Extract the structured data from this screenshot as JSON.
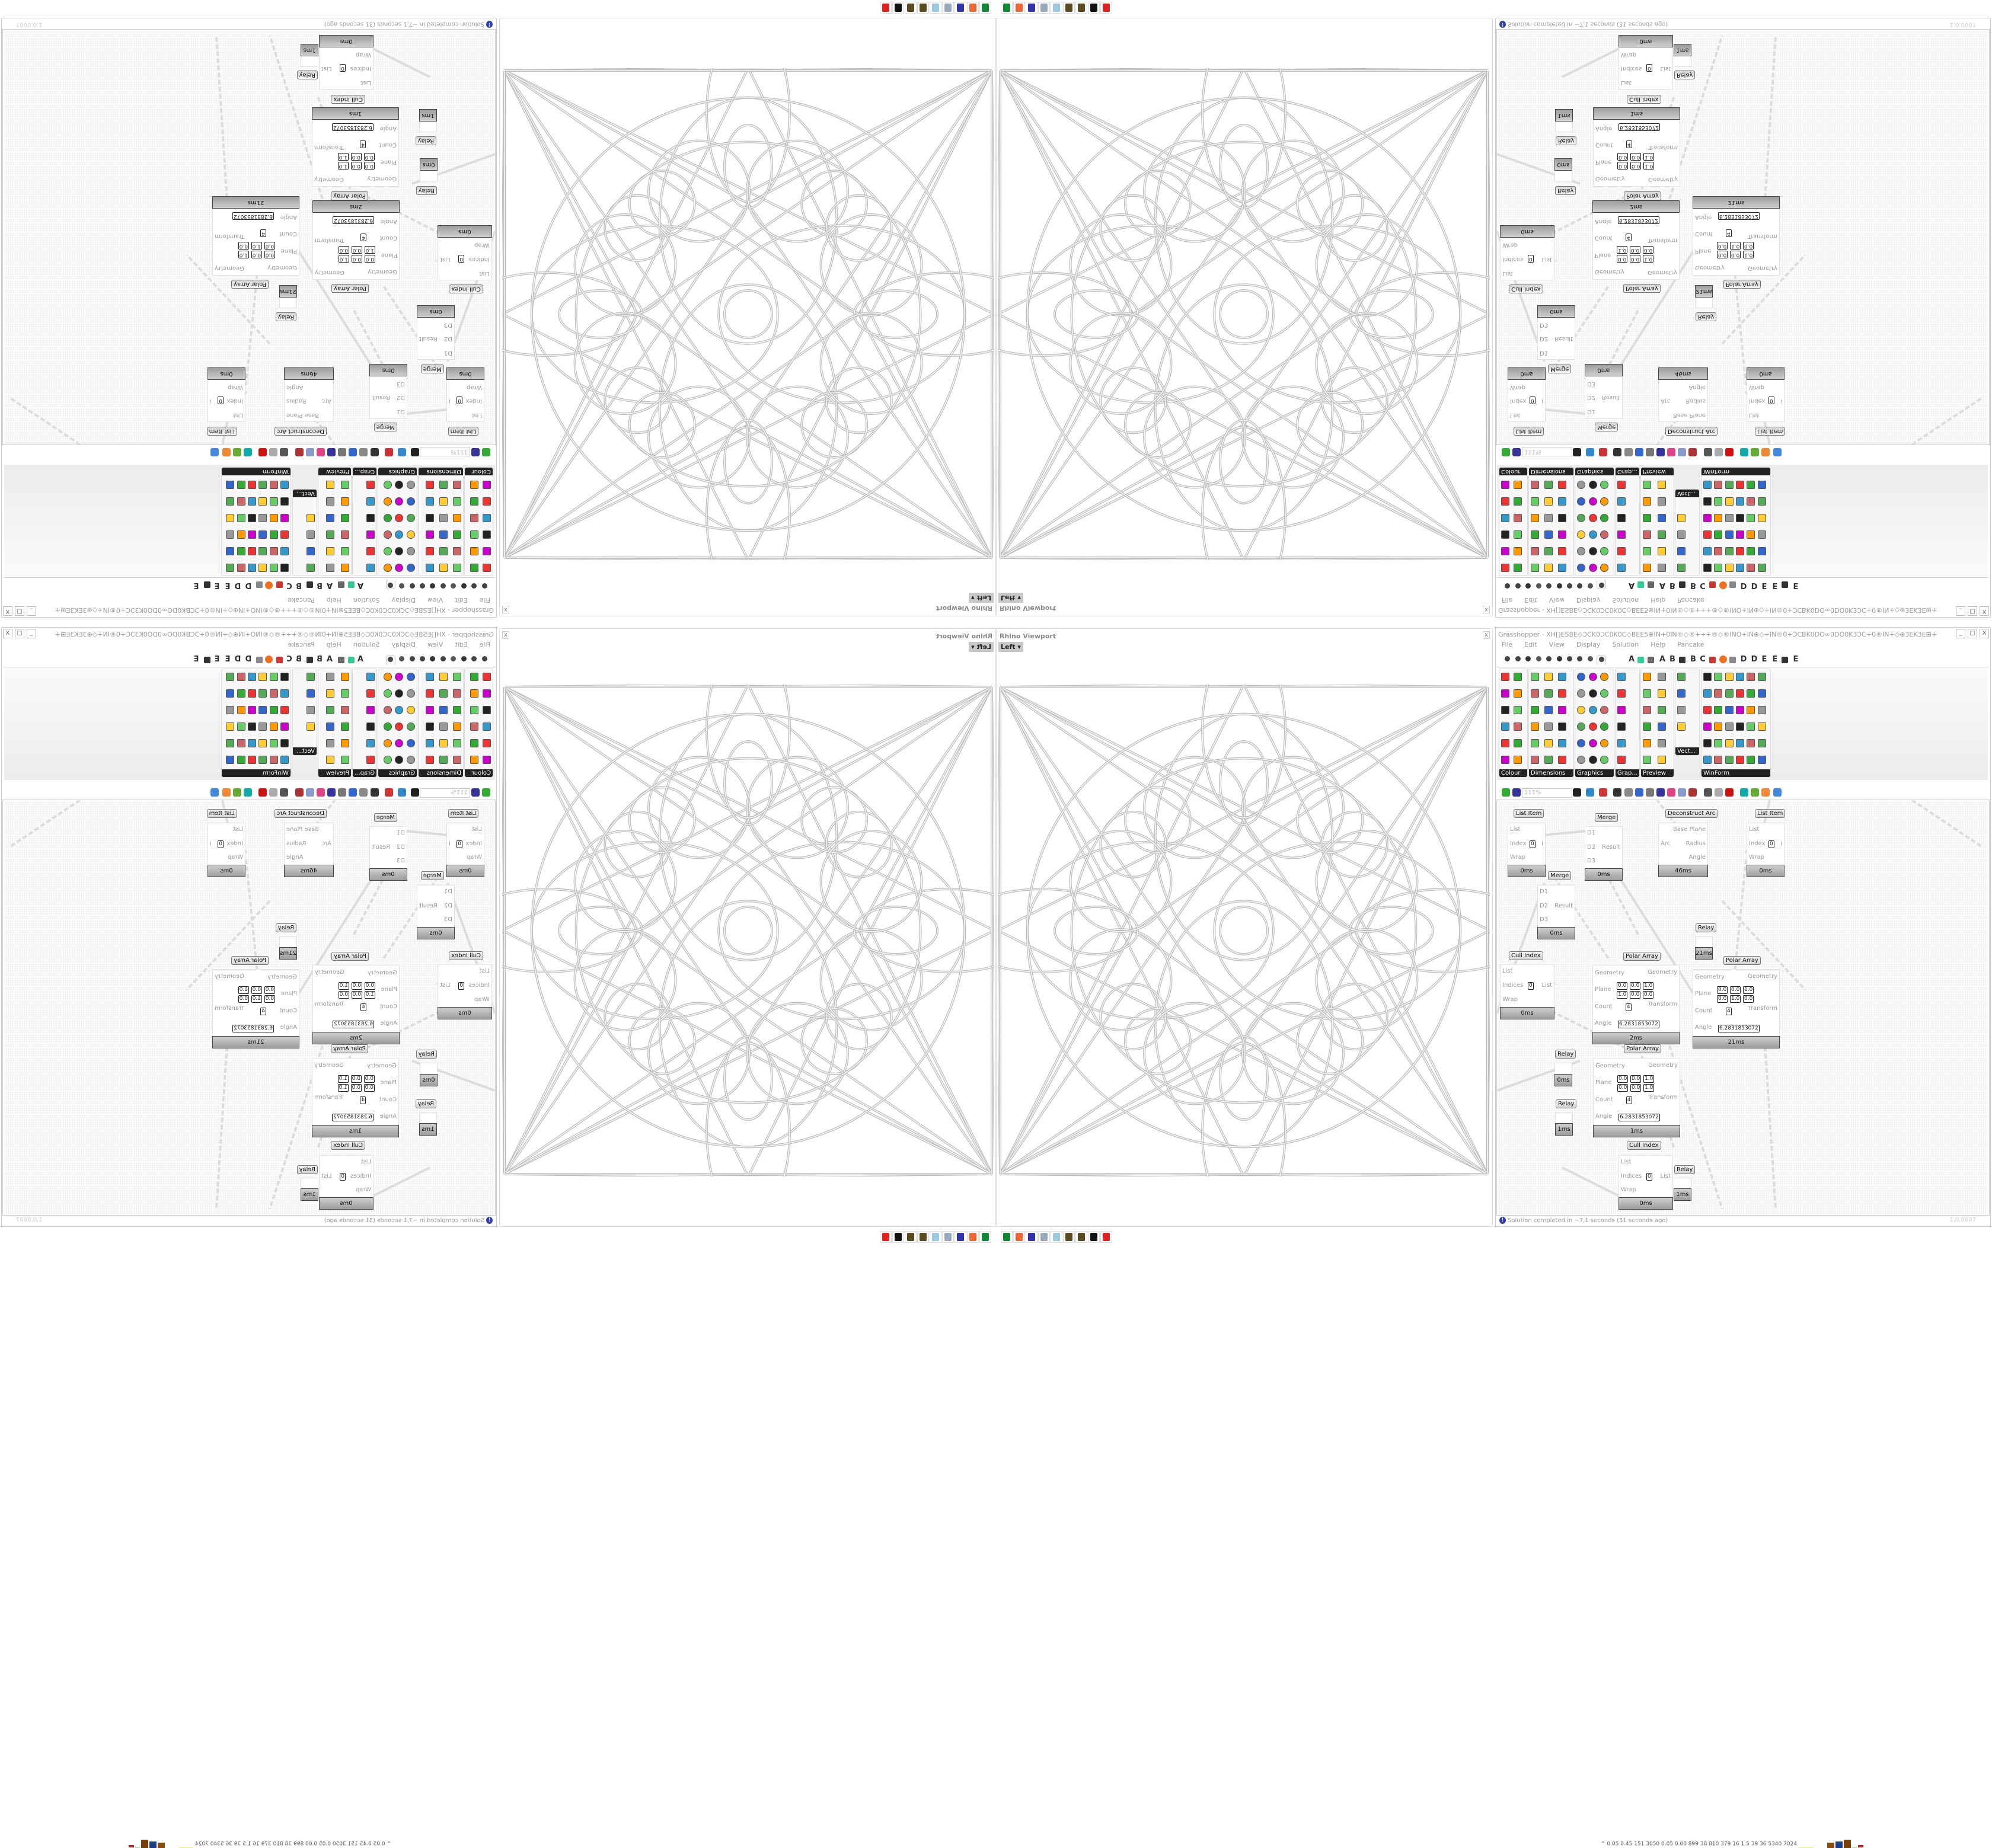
{
  "viewport": {
    "title": "Rhino Viewport",
    "view": "Left",
    "close": "x"
  },
  "grasshopper": {
    "title": "Grasshopper - XH[]ESBE◇ƆCK0ƆC0K0C◇BEE5⊕IN+0IN®◇®+++®◇®INO+IN⊕◇+IN®0+ƆCBK0DO∞0DO0K3ƆC+0®IN+◇⊕3EK3E⊞+ES+⊞3EK3E⊕◇+KD3E⊞+ƆC...",
    "menu": [
      "File",
      "Edit",
      "View",
      "Display",
      "Solution",
      "Help",
      "Pancake"
    ],
    "tab_letters": [
      "A",
      "A",
      "B",
      "B",
      "C",
      "D",
      "D",
      "E",
      "E",
      "E"
    ],
    "groups": [
      "Colour",
      "Dimensions",
      "Graphics",
      "Grap...",
      "Preview",
      "Vect...",
      "WinForm"
    ],
    "zoom": "111%",
    "status": "Solution completed in ~7,1 seconds (31 seconds ago)",
    "version": "1,0,0007",
    "accent_colors": {
      "status_icon": "#3344aa",
      "tab_orange": "#f07020"
    }
  },
  "components": [
    {
      "title": "List Item",
      "inputs": [
        "List",
        "Index",
        "Wrap"
      ],
      "outputs": [
        "i"
      ],
      "time": "0ms"
    },
    {
      "title": "Merge",
      "inputs": [
        "D1",
        "D2",
        "D3"
      ],
      "outputs": [
        "Result"
      ],
      "time": "0ms"
    },
    {
      "title": "Deconstruct Arc",
      "inputs": [
        "Arc"
      ],
      "outputs": [
        "Base Plane",
        "Radius",
        "Angle"
      ],
      "time": "46ms"
    },
    {
      "title": "List Item",
      "inputs": [
        "List",
        "Index",
        "Wrap"
      ],
      "outputs": [
        "i"
      ],
      "time": "0ms"
    },
    {
      "title": "Merge",
      "inputs": [
        "D1",
        "D2",
        "D3"
      ],
      "outputs": [
        "Result"
      ],
      "time": "0ms"
    },
    {
      "title": "Relay",
      "inputs": [],
      "outputs": [],
      "time": "21ms"
    },
    {
      "title": "Cull Index",
      "inputs": [
        "List",
        "Indices",
        "Wrap"
      ],
      "outputs": [
        "List"
      ],
      "time": "0ms"
    },
    {
      "title": "Polar Array",
      "inputs": [
        "Geometry",
        "Plane",
        "Count",
        "Angle"
      ],
      "outputs": [
        "Geometry",
        "Transform"
      ],
      "time": "2ms",
      "origin": [
        "0.0",
        "0.0",
        "1.0"
      ],
      "zaxis": [
        "1.0",
        "0.0",
        "0.0"
      ],
      "count": "4",
      "angle": "6.2831853072"
    },
    {
      "title": "Polar Array",
      "inputs": [
        "Geometry",
        "Plane",
        "Count",
        "Angle"
      ],
      "outputs": [
        "Geometry",
        "Transform"
      ],
      "time": "21ms",
      "origin": [
        "0.0",
        "0.0",
        "1.0"
      ],
      "zaxis": [
        "0.0",
        "1.0",
        "0.0"
      ],
      "count": "4",
      "angle": "6.2831853072"
    },
    {
      "title": "Polar Array",
      "inputs": [
        "Geometry",
        "Plane",
        "Count",
        "Angle"
      ],
      "outputs": [
        "Geometry",
        "Transform"
      ],
      "time": "1ms",
      "origin": [
        "0.0",
        "0.0",
        "1.0"
      ],
      "zaxis": [
        "0.0",
        "0.0",
        "1.0"
      ],
      "count": "4",
      "angle": "6.2831853072"
    },
    {
      "title": "Relay",
      "inputs": [],
      "outputs": [],
      "time": "0ms"
    },
    {
      "title": "Relay",
      "inputs": [],
      "outputs": [],
      "time": "1ms"
    },
    {
      "title": "Cull Index",
      "inputs": [
        "List",
        "Indices",
        "Wrap"
      ],
      "outputs": [
        "List"
      ],
      "time": "0ms"
    },
    {
      "title": "Relay",
      "inputs": [],
      "outputs": [],
      "time": "1ms"
    }
  ],
  "index_value": "0",
  "taskbar": {
    "icons": [
      "security-icon",
      "inkscape-icon",
      "seed-icon",
      "seed-icon",
      "notepad-icon",
      "script-icon",
      "floppy-64-icon",
      "firefox-icon",
      "terminal-icon"
    ]
  },
  "stats": "0.05 0.45 151 3050 0.05 0.00 899 38 810 379 16 1.5 39 36 5340 7024"
}
